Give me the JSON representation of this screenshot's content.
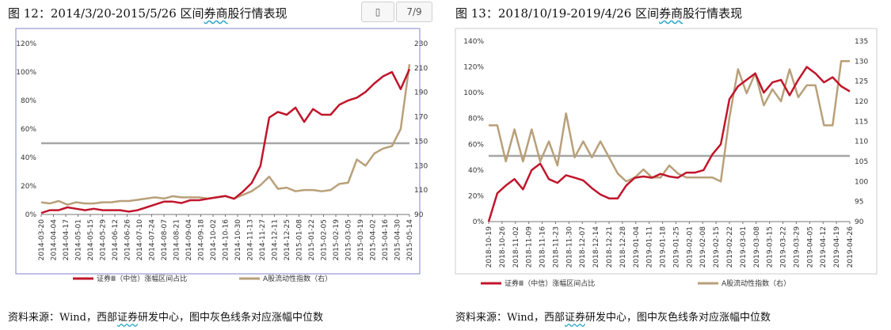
{
  "toolbar": {
    "page_indicator": "7/9"
  },
  "chart_data": [
    {
      "type": "line",
      "title_prefix": "图 12：",
      "title_range": "2014/3/20-2015/5/26 区间",
      "title_ul": "券商",
      "title_rest": "股行情表现",
      "source_prefix": "资料来源：Wind，西部",
      "source_ul": "证券",
      "source_rest": "研发中心，图中灰色线条对应涨幅中位数",
      "colors": {
        "red": "#c0162b",
        "tan": "#b8a07a",
        "ref": "#a6a6a6",
        "frame": "#7f86c9"
      },
      "ylim": [
        0,
        1.2
      ],
      "y2lim": [
        90,
        230
      ],
      "yticks": [
        "0%",
        "20%",
        "40%",
        "60%",
        "80%",
        "100%",
        "120%"
      ],
      "y2ticks": [
        "90",
        "110",
        "130",
        "150",
        "170",
        "190",
        "210",
        "230"
      ],
      "reference_line": 0.5,
      "x": [
        "2014-03-20",
        "2014-03-31",
        "2014-04-10",
        "2014-04-21",
        "2014-04-30",
        "2014-05-09",
        "2014-05-20",
        "2014-05-29",
        "2014-06-10",
        "2014-06-19",
        "2014-06-30",
        "2014-07-09",
        "2014-07-18",
        "2014-07-29",
        "2014-08-07",
        "2014-08-18",
        "2014-08-27",
        "2014-09-05",
        "2014-09-16",
        "2014-09-25",
        "2014-10-09",
        "2014-10-20",
        "2014-10-29",
        "2014-11-07",
        "2014-11-18",
        "2014-11-27",
        "2014-12-08",
        "2014-12-17",
        "2014-12-26",
        "2015-01-08",
        "2015-01-19",
        "2015-01-28",
        "2015-02-06",
        "2015-02-17",
        "2015-03-04",
        "2015-03-13",
        "2015-03-24",
        "2015-04-02",
        "2015-04-13",
        "2015-04-22",
        "2015-05-04",
        "2015-05-13",
        "2015-05-26"
      ],
      "xticks": [
        "2014-03-20",
        "2014-04-04",
        "2014-04-17",
        "2014-05-01",
        "2014-05-15",
        "2014-05-29",
        "2014-06-12",
        "2014-06-26",
        "2014-07-10",
        "2014-07-24",
        "2014-08-07",
        "2014-08-21",
        "2014-09-04",
        "2014-09-18",
        "2014-10-02",
        "2014-10-16",
        "2014-10-30",
        "2014-11-13",
        "2014-11-27",
        "2014-12-11",
        "2014-12-25",
        "2015-01-08",
        "2015-01-22",
        "2015-02-05",
        "2015-02-19",
        "2015-03-05",
        "2015-03-19",
        "2015-04-02",
        "2015-04-16",
        "2015-04-30",
        "2015-05-14"
      ],
      "series": [
        {
          "name": "证券Ⅲ（中信）涨幅区间占比",
          "axis": "left",
          "values": [
            0.01,
            0.03,
            0.03,
            0.05,
            0.04,
            0.03,
            0.04,
            0.03,
            0.03,
            0.03,
            0.02,
            0.03,
            0.05,
            0.07,
            0.09,
            0.09,
            0.08,
            0.1,
            0.1,
            0.11,
            0.12,
            0.13,
            0.11,
            0.16,
            0.22,
            0.34,
            0.68,
            0.72,
            0.7,
            0.75,
            0.65,
            0.74,
            0.7,
            0.7,
            0.77,
            0.8,
            0.82,
            0.86,
            0.92,
            0.97,
            1.0,
            0.88,
            1.02
          ]
        },
        {
          "name": "A股流动性指数（右）",
          "axis": "right",
          "values": [
            100,
            99,
            101,
            98,
            100,
            99,
            99,
            100,
            100,
            101,
            101,
            102,
            103,
            104,
            103,
            105,
            104,
            104,
            104,
            103,
            104,
            105,
            103,
            106,
            109,
            114,
            121,
            111,
            112,
            109,
            110,
            110,
            109,
            110,
            115,
            116,
            135,
            130,
            140,
            144,
            146,
            160,
            213
          ]
        }
      ]
    },
    {
      "type": "line",
      "title_prefix": "图 13：",
      "title_range": "2018/10/19-2019/4/26 区间",
      "title_ul": "券商",
      "title_rest": "股行情表现",
      "source_prefix": "资料来源：Wind，西部",
      "source_ul": "证券",
      "source_rest": "研发中心，图中灰色线条对应涨幅中位数",
      "colors": {
        "red": "#c0162b",
        "tan": "#b8a07a",
        "ref": "#a6a6a6",
        "frame": "#cccccc"
      },
      "ylim": [
        0,
        1.4
      ],
      "y2lim": [
        90,
        135
      ],
      "yticks": [
        "0%",
        "20%",
        "40%",
        "60%",
        "80%",
        "100%",
        "120%",
        "140%"
      ],
      "y2ticks": [
        "90",
        "95",
        "100",
        "105",
        "110",
        "115",
        "120",
        "125",
        "130",
        "135"
      ],
      "reference_line": 0.51,
      "x": [
        "2018-10-19",
        "2018-10-23",
        "2018-10-26",
        "2018-11-01",
        "2018-11-06",
        "2018-11-09",
        "2018-11-14",
        "2018-11-19",
        "2018-11-22",
        "2018-11-27",
        "2018-11-30",
        "2018-12-05",
        "2018-12-10",
        "2018-12-13",
        "2018-12-18",
        "2018-12-21",
        "2018-12-26",
        "2019-01-02",
        "2019-01-07",
        "2019-01-11",
        "2019-01-16",
        "2019-01-21",
        "2019-01-24",
        "2019-01-29",
        "2019-02-01",
        "2019-02-13",
        "2019-02-18",
        "2019-02-21",
        "2019-02-26",
        "2019-03-01",
        "2019-03-06",
        "2019-03-11",
        "2019-03-14",
        "2019-03-19",
        "2019-03-22",
        "2019-03-27",
        "2019-04-01",
        "2019-04-04",
        "2019-04-10",
        "2019-04-15",
        "2019-04-18",
        "2019-04-23",
        "2019-04-26"
      ],
      "xticks": [
        "2018-10-19",
        "2018-10-26",
        "2018-11-02",
        "2018-11-09",
        "2018-11-16",
        "2018-11-23",
        "2018-11-30",
        "2018-12-07",
        "2018-12-14",
        "2018-12-21",
        "2018-12-28",
        "2019-01-04",
        "2019-01-11",
        "2019-01-18",
        "2019-01-25",
        "2019-02-01",
        "2019-02-08",
        "2019-02-15",
        "2019-02-22",
        "2019-03-01",
        "2019-03-08",
        "2019-03-15",
        "2019-03-22",
        "2019-03-29",
        "2019-04-05",
        "2019-04-12",
        "2019-04-19",
        "2019-04-26"
      ],
      "series": [
        {
          "name": "证券Ⅲ（中信）涨幅区间占比",
          "axis": "left",
          "values": [
            0.0,
            0.22,
            0.28,
            0.33,
            0.25,
            0.4,
            0.45,
            0.33,
            0.3,
            0.36,
            0.34,
            0.32,
            0.26,
            0.21,
            0.18,
            0.18,
            0.28,
            0.34,
            0.35,
            0.34,
            0.37,
            0.35,
            0.34,
            0.38,
            0.38,
            0.4,
            0.52,
            0.6,
            0.95,
            1.05,
            1.1,
            1.15,
            1.0,
            1.08,
            1.1,
            0.98,
            1.1,
            1.2,
            1.15,
            1.08,
            1.12,
            1.05,
            1.01
          ]
        },
        {
          "name": "A股流动性指数（右）",
          "axis": "right",
          "values": [
            114,
            114,
            105,
            113,
            105,
            113,
            105,
            110,
            104,
            117,
            106,
            110,
            106,
            110,
            106,
            102,
            100,
            101,
            103,
            101,
            101,
            104,
            102,
            101,
            101,
            101,
            101,
            100,
            116,
            128,
            122,
            127,
            119,
            123,
            120,
            128,
            121,
            124,
            124,
            114,
            114,
            130,
            130
          ]
        }
      ]
    }
  ]
}
